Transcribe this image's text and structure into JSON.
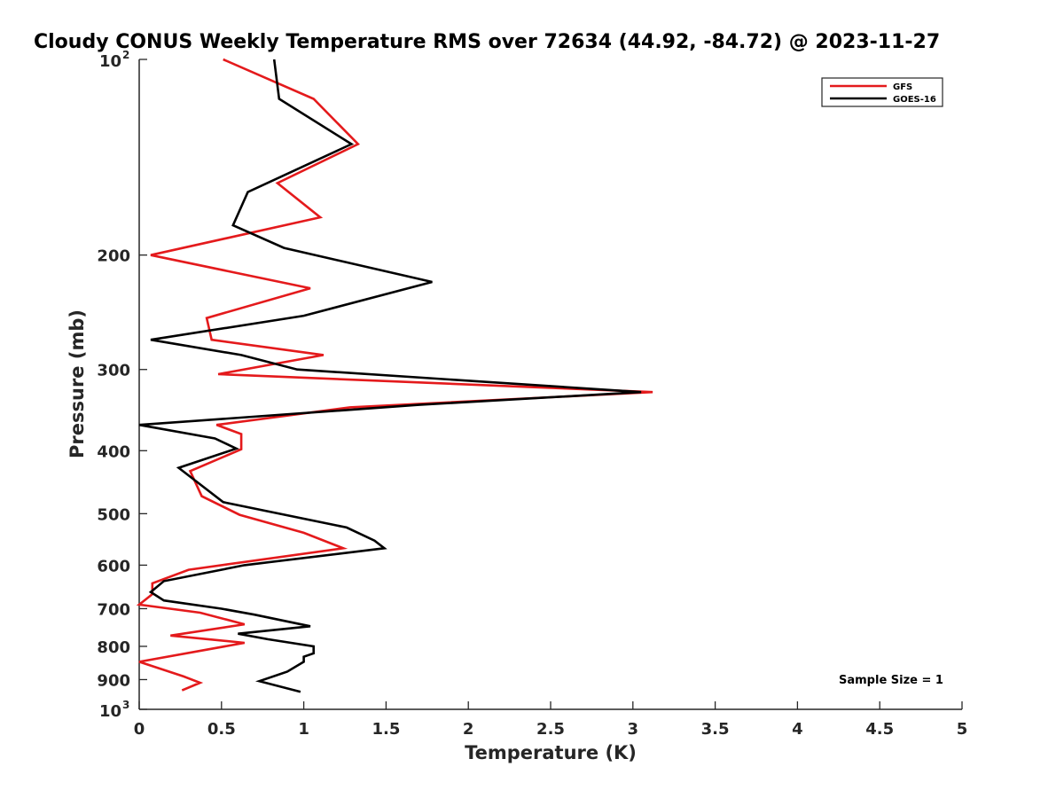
{
  "chart_data": {
    "type": "line",
    "title": "Cloudy CONUS Weekly Temperature RMS over 72634 (44.92, -84.72) @ 2023-11-27",
    "xlabel": "Temperature (K)",
    "ylabel": "Pressure (mb)",
    "xlim": [
      0,
      5
    ],
    "ylim": [
      100,
      1000
    ],
    "y_scale": "log",
    "y_reversed": true,
    "grid": false,
    "legend_position": "top-right",
    "x_ticks": [
      0,
      0.5,
      1,
      1.5,
      2,
      2.5,
      3,
      3.5,
      4,
      4.5,
      5
    ],
    "x_tick_labels": [
      "0",
      "0.5",
      "1",
      "1.5",
      "2",
      "2.5",
      "3",
      "3.5",
      "4",
      "4.5",
      "5"
    ],
    "y_ticks": [
      200,
      300,
      400,
      500,
      600,
      700,
      800,
      900
    ],
    "y_tick_labels": [
      "200",
      "300",
      "400",
      "500",
      "600",
      "700",
      "800",
      "900"
    ],
    "y_limit_labels": [
      {
        "value": 100,
        "base": "10",
        "exp": "2"
      },
      {
        "value": 1000,
        "base": "10",
        "exp": "3"
      }
    ],
    "annotation": "Sample Size = 1",
    "series": [
      {
        "name": "GFS",
        "color": "#e41a1c",
        "x": [
          0.51,
          1.06,
          1.33,
          0.84,
          1.1,
          0.07,
          1.04,
          0.41,
          0.44,
          1.12,
          0.48,
          3.12,
          1.28,
          0.47,
          0.62,
          0.62,
          0.31,
          0.38,
          0.61,
          1.0,
          1.24,
          0.3,
          0.08,
          0.08,
          0.0,
          0.37,
          0.64,
          0.19,
          0.64,
          0.0,
          0.27,
          0.37,
          0.26
        ],
        "y": [
          100,
          115,
          135,
          155,
          175,
          200,
          225,
          250,
          270,
          285,
          305,
          325,
          343,
          365,
          377,
          398,
          430,
          470,
          502,
          535,
          565,
          610,
          640,
          665,
          690,
          710,
          740,
          770,
          790,
          845,
          890,
          910,
          935
        ]
      },
      {
        "name": "GOES-16",
        "color": "#000000",
        "x": [
          0.82,
          0.85,
          1.29,
          0.66,
          0.57,
          0.88,
          1.78,
          1.0,
          0.07,
          0.62,
          0.96,
          3.05,
          1.7,
          0.0,
          0.46,
          0.59,
          0.24,
          0.51,
          1.26,
          1.43,
          1.49,
          0.64,
          0.15,
          0.07,
          0.15,
          0.5,
          0.7,
          1.04,
          0.6,
          0.78,
          1.06,
          1.06,
          1.0,
          1.0,
          0.9,
          0.73,
          0.98
        ],
        "y": [
          100,
          115,
          135,
          160,
          180,
          195,
          220,
          248,
          270,
          285,
          300,
          325,
          340,
          365,
          383,
          397,
          425,
          480,
          525,
          550,
          565,
          600,
          635,
          660,
          680,
          700,
          715,
          745,
          765,
          780,
          800,
          820,
          830,
          845,
          875,
          905,
          940
        ]
      }
    ]
  }
}
